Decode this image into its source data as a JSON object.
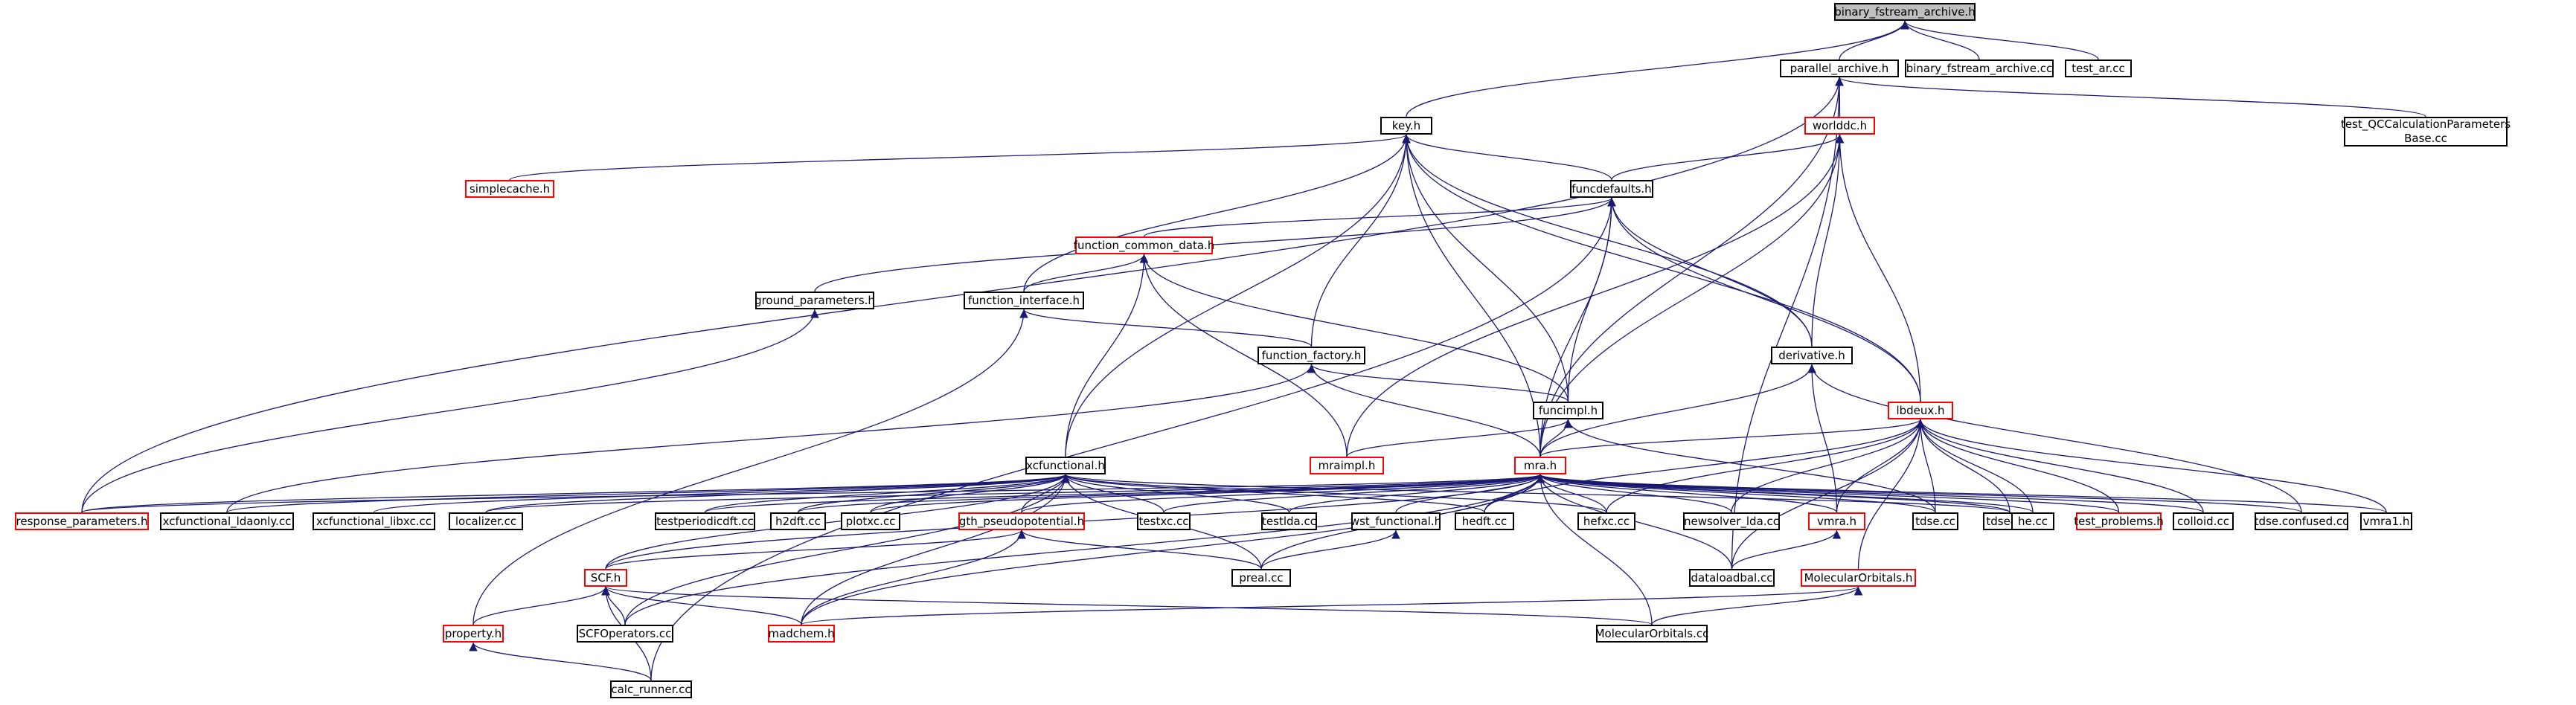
{
  "graph": {
    "edge_color": "#191970",
    "nodes": [
      {
        "id": "bfa_h",
        "label": "binary_fstream_archive.h",
        "style": "root"
      },
      {
        "id": "parallel",
        "label": "parallel_archive.h",
        "style": "normal"
      },
      {
        "id": "bfa_cc",
        "label": "binary_fstream_archive.cc",
        "style": "normal"
      },
      {
        "id": "testar",
        "label": "test_ar.cc",
        "style": "normal"
      },
      {
        "id": "key",
        "label": "key.h",
        "style": "normal"
      },
      {
        "id": "worlddc",
        "label": "worlddc.h",
        "style": "red"
      },
      {
        "id": "testqc",
        "label": "test_QCCalculationParameters\nBase.cc",
        "style": "normal"
      },
      {
        "id": "simplecache",
        "label": "simplecache.h",
        "style": "red"
      },
      {
        "id": "funcdefaults",
        "label": "funcdefaults.h",
        "style": "normal"
      },
      {
        "id": "fcd",
        "label": "function_common_data.h",
        "style": "red"
      },
      {
        "id": "ground",
        "label": "ground_parameters.h",
        "style": "normal"
      },
      {
        "id": "finterface",
        "label": "function_interface.h",
        "style": "normal"
      },
      {
        "id": "derivative",
        "label": "derivative.h",
        "style": "normal"
      },
      {
        "id": "ffactory",
        "label": "function_factory.h",
        "style": "normal"
      },
      {
        "id": "lbdeux",
        "label": "lbdeux.h",
        "style": "red"
      },
      {
        "id": "funcimpl",
        "label": "funcimpl.h",
        "style": "normal"
      },
      {
        "id": "mraimpl",
        "label": "mraimpl.h",
        "style": "red"
      },
      {
        "id": "xcfunc",
        "label": "xcfunctional.h",
        "style": "normal"
      },
      {
        "id": "mra",
        "label": "mra.h",
        "style": "red"
      },
      {
        "id": "respparams",
        "label": "response_parameters.h",
        "style": "red"
      },
      {
        "id": "xclda",
        "label": "xcfunctional_ldaonly.cc",
        "style": "normal"
      },
      {
        "id": "xclibxc",
        "label": "xcfunctional_libxc.cc",
        "style": "normal"
      },
      {
        "id": "localizer",
        "label": "localizer.cc",
        "style": "normal"
      },
      {
        "id": "testperiodic",
        "label": "testperiodicdft.cc",
        "style": "normal"
      },
      {
        "id": "h2dft",
        "label": "h2dft.cc",
        "style": "normal"
      },
      {
        "id": "plotxc",
        "label": "plotxc.cc",
        "style": "normal"
      },
      {
        "id": "testxc",
        "label": "testxc.cc",
        "style": "normal"
      },
      {
        "id": "testlda",
        "label": "testlda.cc",
        "style": "normal"
      },
      {
        "id": "wst",
        "label": "wst_functional.h",
        "style": "normal"
      },
      {
        "id": "hedft",
        "label": "hedft.cc",
        "style": "normal"
      },
      {
        "id": "hefxc",
        "label": "hefxc.cc",
        "style": "normal"
      },
      {
        "id": "newsolver",
        "label": "newsolver_lda.cc",
        "style": "normal"
      },
      {
        "id": "vmrah",
        "label": "vmra.h",
        "style": "red"
      },
      {
        "id": "tdse",
        "label": "tdse.cc",
        "style": "normal"
      },
      {
        "id": "tdse4",
        "label": "tdse4.cc",
        "style": "normal"
      },
      {
        "id": "he",
        "label": "he.cc",
        "style": "normal"
      },
      {
        "id": "testprob",
        "label": "test_problems.h",
        "style": "red"
      },
      {
        "id": "colloid",
        "label": "colloid.cc",
        "style": "normal"
      },
      {
        "id": "tdseconf",
        "label": "tdse.confused.cc",
        "style": "normal"
      },
      {
        "id": "vmra1",
        "label": "vmra1.h",
        "style": "normal"
      },
      {
        "id": "gth",
        "label": "gth_pseudopotential.h",
        "style": "red"
      },
      {
        "id": "scf",
        "label": "SCF.h",
        "style": "red"
      },
      {
        "id": "preal",
        "label": "preal.cc",
        "style": "normal"
      },
      {
        "id": "dataload",
        "label": "dataloadbal.cc",
        "style": "normal"
      },
      {
        "id": "molorb",
        "label": "MolecularOrbitals.h",
        "style": "red"
      },
      {
        "id": "property",
        "label": "property.h",
        "style": "red"
      },
      {
        "id": "scfops",
        "label": "SCFOperators.cc",
        "style": "normal"
      },
      {
        "id": "madchem",
        "label": "madchem.h",
        "style": "red"
      },
      {
        "id": "molorbcc",
        "label": "MolecularOrbitals.cc",
        "style": "normal"
      },
      {
        "id": "calcrunner",
        "label": "calc_runner.cc",
        "style": "normal"
      }
    ],
    "edges": [
      [
        "parallel",
        "bfa_h"
      ],
      [
        "bfa_cc",
        "bfa_h"
      ],
      [
        "testar",
        "bfa_h"
      ],
      [
        "key",
        "bfa_h"
      ],
      [
        "worlddc",
        "parallel"
      ],
      [
        "testqc",
        "parallel"
      ],
      [
        "respparams",
        "parallel"
      ],
      [
        "dataload",
        "parallel"
      ],
      [
        "mra",
        "parallel"
      ],
      [
        "simplecache",
        "key"
      ],
      [
        "funcdefaults",
        "key"
      ],
      [
        "xcfunc",
        "key"
      ],
      [
        "finterface",
        "key"
      ],
      [
        "ffactory",
        "key"
      ],
      [
        "derivative",
        "key"
      ],
      [
        "lbdeux",
        "key"
      ],
      [
        "funcimpl",
        "key"
      ],
      [
        "mra",
        "key"
      ],
      [
        "funcdefaults",
        "worlddc"
      ],
      [
        "derivative",
        "worlddc"
      ],
      [
        "lbdeux",
        "worlddc"
      ],
      [
        "mraimpl",
        "worlddc"
      ],
      [
        "mra",
        "worlddc"
      ],
      [
        "fcd",
        "funcdefaults"
      ],
      [
        "ground",
        "funcdefaults"
      ],
      [
        "derivative",
        "funcdefaults"
      ],
      [
        "lbdeux",
        "funcdefaults"
      ],
      [
        "funcimpl",
        "funcdefaults"
      ],
      [
        "mra",
        "funcdefaults"
      ],
      [
        "calcrunner",
        "funcdefaults"
      ],
      [
        "finterface",
        "fcd"
      ],
      [
        "xcfunc",
        "fcd"
      ],
      [
        "mraimpl",
        "fcd"
      ],
      [
        "funcimpl",
        "fcd"
      ],
      [
        "respparams",
        "ground"
      ],
      [
        "ffactory",
        "finterface"
      ],
      [
        "property",
        "finterface"
      ],
      [
        "mra",
        "derivative"
      ],
      [
        "vmrah",
        "derivative"
      ],
      [
        "tdseconf",
        "derivative"
      ],
      [
        "funcimpl",
        "ffactory"
      ],
      [
        "mra",
        "ffactory"
      ],
      [
        "xclda",
        "ffactory"
      ],
      [
        "mra",
        "lbdeux"
      ],
      [
        "hedft",
        "lbdeux"
      ],
      [
        "hefxc",
        "lbdeux"
      ],
      [
        "newsolver",
        "lbdeux"
      ],
      [
        "vmrah",
        "lbdeux"
      ],
      [
        "tdse",
        "lbdeux"
      ],
      [
        "tdse4",
        "lbdeux"
      ],
      [
        "he",
        "lbdeux"
      ],
      [
        "testprob",
        "lbdeux"
      ],
      [
        "colloid",
        "lbdeux"
      ],
      [
        "vmra1",
        "lbdeux"
      ],
      [
        "dataload",
        "lbdeux"
      ],
      [
        "molorb",
        "lbdeux"
      ],
      [
        "mraimpl",
        "funcimpl"
      ],
      [
        "mra",
        "funcimpl"
      ],
      [
        "tdse",
        "funcimpl"
      ],
      [
        "respparams",
        "xcfunc"
      ],
      [
        "xclda",
        "xcfunc"
      ],
      [
        "xclibxc",
        "xcfunc"
      ],
      [
        "localizer",
        "xcfunc"
      ],
      [
        "testperiodic",
        "xcfunc"
      ],
      [
        "h2dft",
        "xcfunc"
      ],
      [
        "plotxc",
        "xcfunc"
      ],
      [
        "testxc",
        "xcfunc"
      ],
      [
        "testlda",
        "xcfunc"
      ],
      [
        "hedft",
        "xcfunc"
      ],
      [
        "hefxc",
        "xcfunc"
      ],
      [
        "gth",
        "xcfunc"
      ],
      [
        "scf",
        "xcfunc"
      ],
      [
        "preal",
        "xcfunc"
      ],
      [
        "scfops",
        "xcfunc"
      ],
      [
        "madchem",
        "xcfunc"
      ],
      [
        "tdse4",
        "xcfunc"
      ],
      [
        "respparams",
        "mra"
      ],
      [
        "localizer",
        "mra"
      ],
      [
        "testperiodic",
        "mra"
      ],
      [
        "h2dft",
        "mra"
      ],
      [
        "plotxc",
        "mra"
      ],
      [
        "testxc",
        "mra"
      ],
      [
        "testlda",
        "mra"
      ],
      [
        "wst",
        "mra"
      ],
      [
        "hedft",
        "mra"
      ],
      [
        "hefxc",
        "mra"
      ],
      [
        "newsolver",
        "mra"
      ],
      [
        "vmrah",
        "mra"
      ],
      [
        "tdse",
        "mra"
      ],
      [
        "tdse4",
        "mra"
      ],
      [
        "he",
        "mra"
      ],
      [
        "testprob",
        "mra"
      ],
      [
        "colloid",
        "mra"
      ],
      [
        "tdseconf",
        "mra"
      ],
      [
        "vmra1",
        "mra"
      ],
      [
        "gth",
        "mra"
      ],
      [
        "scf",
        "mra"
      ],
      [
        "preal",
        "mra"
      ],
      [
        "dataload",
        "mra"
      ],
      [
        "madchem",
        "mra"
      ],
      [
        "molorbcc",
        "mra"
      ],
      [
        "scfops",
        "mra"
      ],
      [
        "preal",
        "wst"
      ],
      [
        "dataload",
        "vmrah"
      ],
      [
        "scf",
        "gth"
      ],
      [
        "preal",
        "gth"
      ],
      [
        "madchem",
        "gth"
      ],
      [
        "property",
        "scf"
      ],
      [
        "scfops",
        "scf"
      ],
      [
        "madchem",
        "scf"
      ],
      [
        "calcrunner",
        "scf"
      ],
      [
        "molorbcc",
        "scf"
      ],
      [
        "madchem",
        "molorb"
      ],
      [
        "molorbcc",
        "molorb"
      ],
      [
        "calcrunner",
        "property"
      ]
    ]
  }
}
